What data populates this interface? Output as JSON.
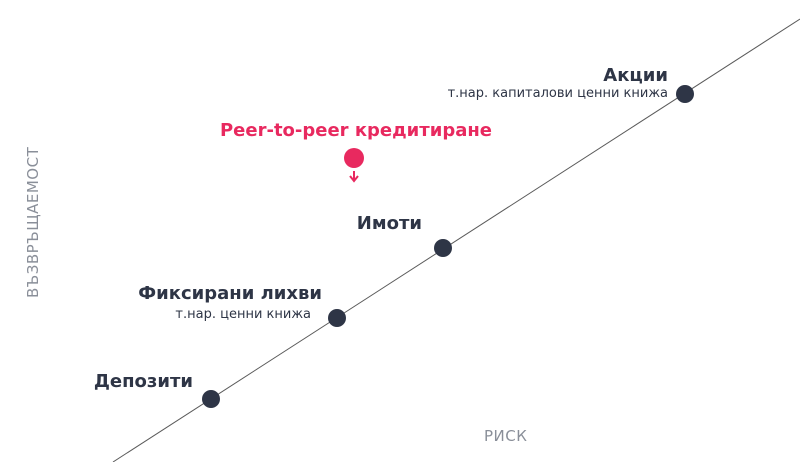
{
  "colors": {
    "line": "#5a5a5a",
    "dot": "#2e3546",
    "text": "#2e3546",
    "muted": "#8a8f99",
    "accent": "#e8295f"
  },
  "axes": {
    "y_label": "ВЪЗВРЪЩАЕМОСТ",
    "x_label": "РИСК"
  },
  "assets": [
    {
      "key": "deposits",
      "title": "Депозити",
      "subtitle": ""
    },
    {
      "key": "fixed-income",
      "title": "Фиксирани лихви",
      "subtitle": "т.нар. ценни книжа"
    },
    {
      "key": "real-estate",
      "title": "Имоти",
      "subtitle": ""
    },
    {
      "key": "stocks",
      "title": "Акции",
      "subtitle": "т.нар. капиталови ценни книжа"
    }
  ],
  "highlight": {
    "title": "Peer-to-peer кредитиране"
  }
}
